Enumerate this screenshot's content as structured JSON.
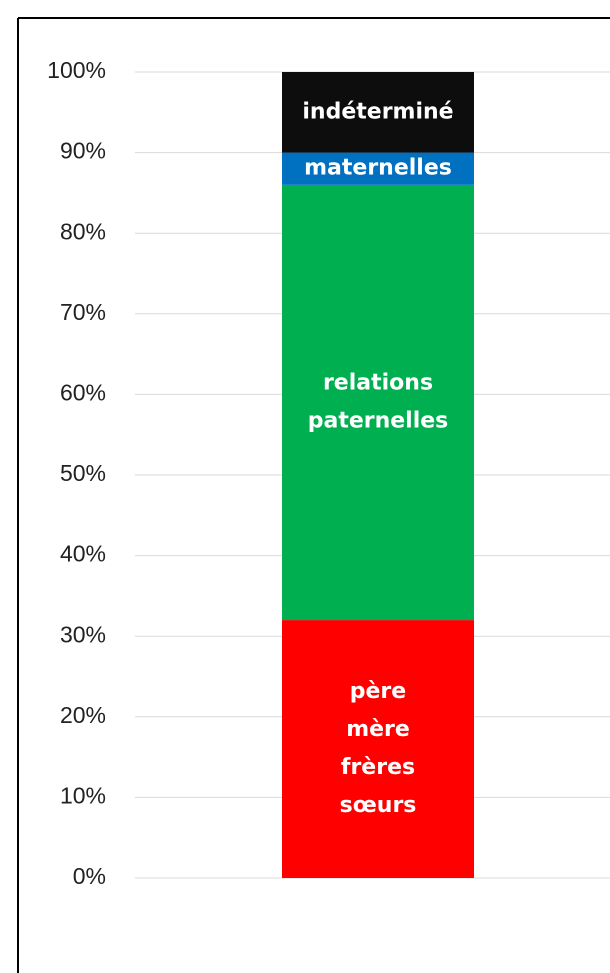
{
  "chart_data": {
    "type": "stacked_bar",
    "categories": [
      null
    ],
    "series": [
      {
        "name": "père mère frères sœurs",
        "color": "#ff0000",
        "values": [
          32
        ]
      },
      {
        "name": "relations paternelles",
        "color": "#00b050",
        "values": [
          54
        ]
      },
      {
        "name": "maternelles",
        "color": "#0070c0",
        "values": [
          4
        ]
      },
      {
        "name": "indéterminé",
        "color": "#0d0d0d",
        "values": [
          10
        ]
      }
    ],
    "ylim": [
      0,
      100
    ],
    "yticks": [
      {
        "value": 0,
        "label": "0%"
      },
      {
        "value": 10,
        "label": "10%"
      },
      {
        "value": 20,
        "label": "20%"
      },
      {
        "value": 30,
        "label": "30%"
      },
      {
        "value": 40,
        "label": "40%"
      },
      {
        "value": 50,
        "label": "50%"
      },
      {
        "value": 60,
        "label": "60%"
      },
      {
        "value": 70,
        "label": "70%"
      },
      {
        "value": 80,
        "label": "80%"
      },
      {
        "value": 90,
        "label": "90%"
      },
      {
        "value": 100,
        "label": "100%"
      }
    ],
    "grid": true
  }
}
